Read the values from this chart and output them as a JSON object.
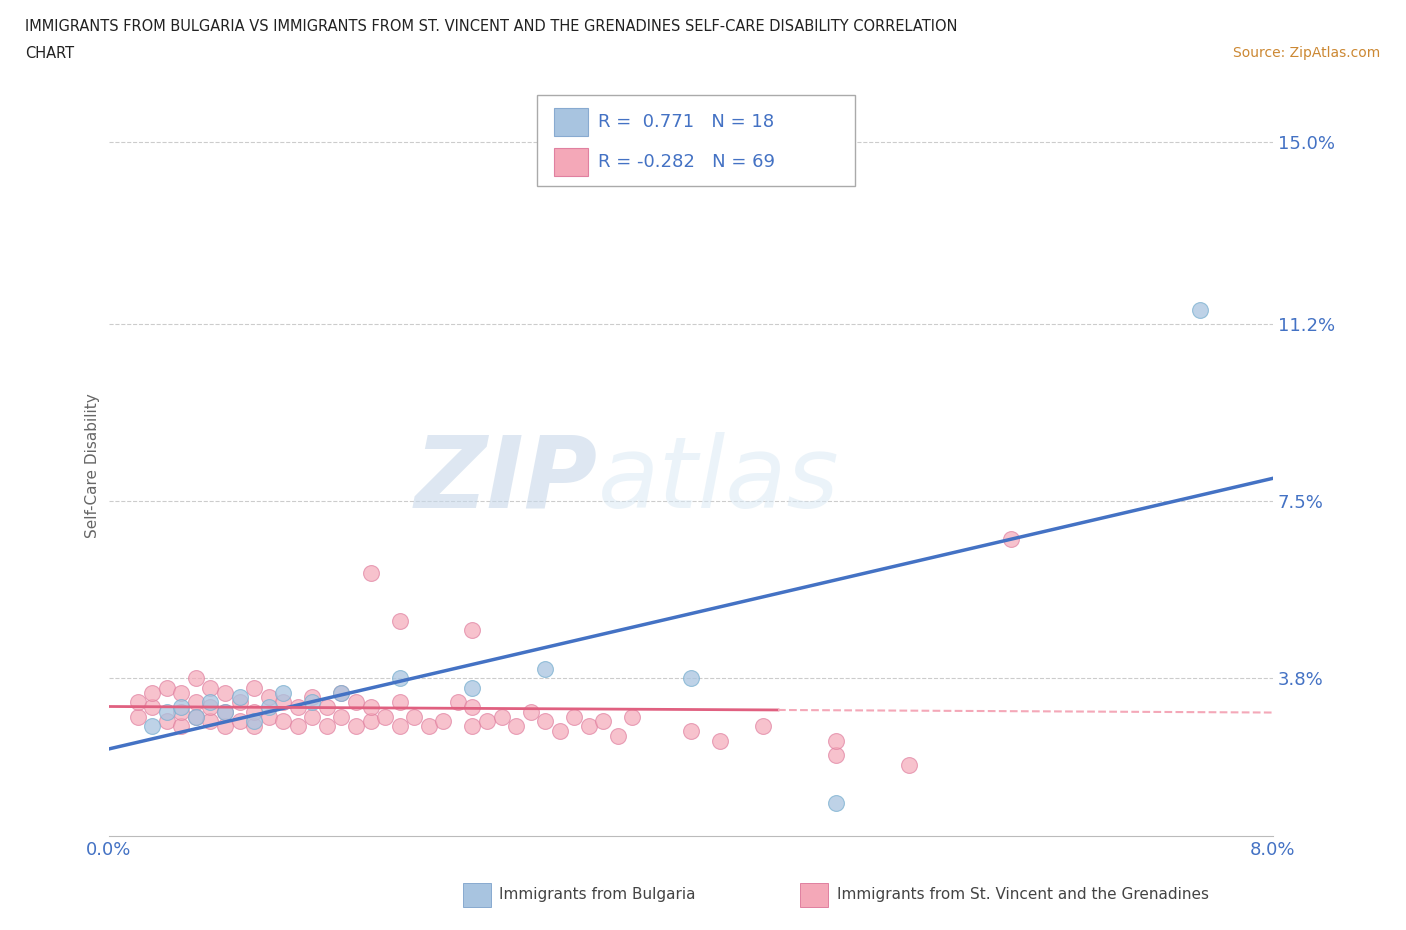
{
  "title_line1": "IMMIGRANTS FROM BULGARIA VS IMMIGRANTS FROM ST. VINCENT AND THE GRENADINES SELF-CARE DISABILITY CORRELATION",
  "title_line2": "CHART",
  "source_text": "Source: ZipAtlas.com",
  "ylabel": "Self-Care Disability",
  "xmin": 0.0,
  "xmax": 0.08,
  "ymin": 0.005,
  "ymax": 0.16,
  "yticks": [
    0.038,
    0.075,
    0.112,
    0.15
  ],
  "ytick_labels": [
    "3.8%",
    "7.5%",
    "11.2%",
    "15.0%"
  ],
  "xtick_vals": [
    0.0,
    0.02,
    0.04,
    0.06,
    0.08
  ],
  "xtick_labels": [
    "0.0%",
    "",
    "",
    "",
    "8.0%"
  ],
  "bulgaria_color": "#a8c4e0",
  "svg_color": "#f4a8b8",
  "blue_line_color": "#4472c4",
  "pink_solid_color": "#e06080",
  "pink_dash_color": "#f4a8b8",
  "legend_label1": "Immigrants from Bulgaria",
  "legend_label2": "Immigrants from St. Vincent and the Grenadines",
  "bulgaria_x": [
    0.003,
    0.004,
    0.005,
    0.006,
    0.007,
    0.008,
    0.009,
    0.01,
    0.011,
    0.012,
    0.014,
    0.016,
    0.02,
    0.025,
    0.03,
    0.04,
    0.05,
    0.075
  ],
  "bulgaria_y": [
    0.028,
    0.031,
    0.032,
    0.03,
    0.033,
    0.031,
    0.034,
    0.029,
    0.032,
    0.035,
    0.033,
    0.035,
    0.038,
    0.036,
    0.04,
    0.038,
    0.012,
    0.115
  ],
  "svg_x": [
    0.002,
    0.002,
    0.003,
    0.003,
    0.004,
    0.004,
    0.005,
    0.005,
    0.005,
    0.006,
    0.006,
    0.006,
    0.007,
    0.007,
    0.007,
    0.008,
    0.008,
    0.008,
    0.009,
    0.009,
    0.01,
    0.01,
    0.01,
    0.011,
    0.011,
    0.012,
    0.012,
    0.013,
    0.013,
    0.014,
    0.014,
    0.015,
    0.015,
    0.016,
    0.016,
    0.017,
    0.017,
    0.018,
    0.018,
    0.019,
    0.02,
    0.02,
    0.021,
    0.022,
    0.023,
    0.024,
    0.025,
    0.025,
    0.026,
    0.027,
    0.028,
    0.029,
    0.03,
    0.031,
    0.032,
    0.033,
    0.034,
    0.035,
    0.036,
    0.04,
    0.042,
    0.045,
    0.05,
    0.05,
    0.055,
    0.062,
    0.018,
    0.02,
    0.025
  ],
  "svg_y": [
    0.03,
    0.033,
    0.032,
    0.035,
    0.029,
    0.036,
    0.028,
    0.031,
    0.035,
    0.03,
    0.033,
    0.038,
    0.029,
    0.032,
    0.036,
    0.028,
    0.031,
    0.035,
    0.029,
    0.033,
    0.028,
    0.031,
    0.036,
    0.03,
    0.034,
    0.029,
    0.033,
    0.028,
    0.032,
    0.03,
    0.034,
    0.028,
    0.032,
    0.03,
    0.035,
    0.028,
    0.033,
    0.029,
    0.032,
    0.03,
    0.028,
    0.033,
    0.03,
    0.028,
    0.029,
    0.033,
    0.028,
    0.032,
    0.029,
    0.03,
    0.028,
    0.031,
    0.029,
    0.027,
    0.03,
    0.028,
    0.029,
    0.026,
    0.03,
    0.027,
    0.025,
    0.028,
    0.022,
    0.025,
    0.02,
    0.067,
    0.06,
    0.05,
    0.048
  ]
}
